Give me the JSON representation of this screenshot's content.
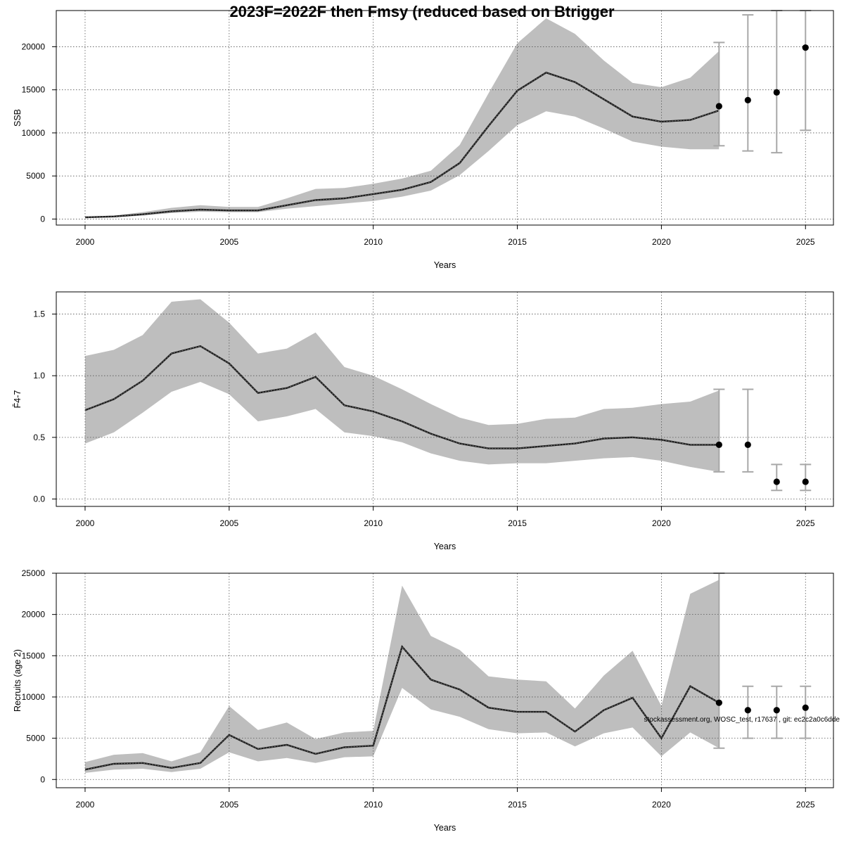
{
  "page": {
    "title": "2023F=2022F then Fmsy (reduced based on Btrigger",
    "footnote": "stockassessment.org, WOSC_test, r17637 , git: ec2c2a0c6dde"
  },
  "colors": {
    "band": "#bebebe",
    "line": "#1a1a1a",
    "point": "#000000",
    "errorbar": "#a8a8a8",
    "grid": "#555555",
    "frame": "#000000"
  },
  "chart_data": [
    {
      "type": "line",
      "id": "ssb",
      "ylabel": "SSB",
      "xlabel": "Years",
      "xlim": [
        1999.0,
        2025.97
      ],
      "ylim": [
        -700,
        24200
      ],
      "xticks": [
        2000,
        2005,
        2010,
        2015,
        2020,
        2025
      ],
      "yticks": [
        0,
        5000,
        10000,
        15000,
        20000
      ],
      "ytick_labels": [
        "0",
        "5000",
        "10000",
        "15000",
        "20000"
      ],
      "grid": true,
      "estimate": {
        "x": [
          2000,
          2001,
          2002,
          2003,
          2004,
          2005,
          2006,
          2007,
          2008,
          2009,
          2010,
          2011,
          2012,
          2013,
          2014,
          2015,
          2016,
          2017,
          2018,
          2019,
          2020,
          2021,
          2022
        ],
        "y": [
          200,
          300,
          550,
          900,
          1100,
          1000,
          1000,
          1600,
          2200,
          2400,
          2900,
          3400,
          4300,
          6500,
          10800,
          14900,
          17000,
          15900,
          13900,
          11900,
          11300,
          11500,
          12600
        ],
        "lower": [
          100,
          200,
          400,
          700,
          850,
          800,
          800,
          1200,
          1500,
          1800,
          2100,
          2600,
          3300,
          5100,
          7900,
          10900,
          12500,
          11900,
          10500,
          9000,
          8400,
          8100,
          8100
        ],
        "upper": [
          300,
          400,
          800,
          1300,
          1600,
          1400,
          1400,
          2400,
          3500,
          3600,
          4100,
          4700,
          5600,
          8600,
          14600,
          20400,
          23300,
          21500,
          18400,
          15800,
          15300,
          16400,
          19500
        ]
      },
      "forecast": {
        "x": [
          2022,
          2023,
          2024,
          2025
        ],
        "y": [
          13100,
          13800,
          14700,
          19900
        ],
        "lower": [
          8500,
          7900,
          7700,
          10300
        ],
        "upper": [
          20500,
          23700,
          24200,
          24200
        ]
      }
    },
    {
      "type": "line",
      "id": "fbar",
      "ylabel": "F̄4-7",
      "xlabel": "Years",
      "xlim": [
        1999.0,
        2025.97
      ],
      "ylim": [
        -0.06,
        1.68
      ],
      "xticks": [
        2000,
        2005,
        2010,
        2015,
        2020,
        2025
      ],
      "yticks": [
        0.0,
        0.5,
        1.0,
        1.5
      ],
      "ytick_labels": [
        "0.0",
        "0.5",
        "1.0",
        "1.5"
      ],
      "grid": true,
      "estimate": {
        "x": [
          2000,
          2001,
          2002,
          2003,
          2004,
          2005,
          2006,
          2007,
          2008,
          2009,
          2010,
          2011,
          2012,
          2013,
          2014,
          2015,
          2016,
          2017,
          2018,
          2019,
          2020,
          2021,
          2022
        ],
        "y": [
          0.72,
          0.81,
          0.96,
          1.18,
          1.24,
          1.1,
          0.86,
          0.9,
          0.99,
          0.76,
          0.71,
          0.63,
          0.53,
          0.45,
          0.41,
          0.41,
          0.43,
          0.45,
          0.49,
          0.5,
          0.48,
          0.44,
          0.44
        ],
        "lower": [
          0.45,
          0.54,
          0.7,
          0.87,
          0.95,
          0.85,
          0.63,
          0.67,
          0.73,
          0.54,
          0.51,
          0.46,
          0.37,
          0.31,
          0.28,
          0.29,
          0.29,
          0.31,
          0.33,
          0.34,
          0.31,
          0.26,
          0.22
        ],
        "upper": [
          1.16,
          1.21,
          1.33,
          1.6,
          1.62,
          1.43,
          1.18,
          1.22,
          1.35,
          1.07,
          1.0,
          0.89,
          0.77,
          0.66,
          0.6,
          0.61,
          0.65,
          0.66,
          0.73,
          0.74,
          0.77,
          0.79,
          0.88
        ]
      },
      "forecast": {
        "x": [
          2022,
          2023,
          2024,
          2025
        ],
        "y": [
          0.44,
          0.44,
          0.14,
          0.14
        ],
        "lower": [
          0.22,
          0.22,
          0.07,
          0.07
        ],
        "upper": [
          0.89,
          0.89,
          0.28,
          0.28
        ]
      }
    },
    {
      "type": "line",
      "id": "recruits",
      "ylabel": "Recruits (age 2)",
      "xlabel": "Years",
      "xlim": [
        1999.0,
        2025.97
      ],
      "ylim": [
        -1000,
        25000
      ],
      "xticks": [
        2000,
        2005,
        2010,
        2015,
        2020,
        2025
      ],
      "yticks": [
        0,
        5000,
        10000,
        15000,
        20000,
        25000
      ],
      "ytick_labels": [
        "0",
        "5000",
        "10000",
        "15000",
        "20000",
        "25000"
      ],
      "grid": true,
      "estimate": {
        "x": [
          2000,
          2001,
          2002,
          2003,
          2004,
          2005,
          2006,
          2007,
          2008,
          2009,
          2010,
          2011,
          2012,
          2013,
          2014,
          2015,
          2016,
          2017,
          2018,
          2019,
          2020,
          2021,
          2022
        ],
        "y": [
          1200,
          1900,
          2000,
          1400,
          2000,
          5400,
          3700,
          4200,
          3100,
          3900,
          4100,
          16100,
          12100,
          10900,
          8700,
          8200,
          8200,
          5800,
          8400,
          9900,
          5000,
          11300,
          9300
        ],
        "lower": [
          800,
          1200,
          1300,
          900,
          1300,
          3300,
          2200,
          2600,
          2000,
          2700,
          2800,
          11100,
          8500,
          7600,
          6100,
          5600,
          5700,
          4000,
          5600,
          6300,
          2800,
          5700,
          3800
        ],
        "upper": [
          2100,
          3000,
          3200,
          2200,
          3300,
          8900,
          6000,
          6900,
          4900,
          5700,
          5900,
          23500,
          17400,
          15700,
          12500,
          12100,
          11900,
          8600,
          12600,
          15600,
          8900,
          22500,
          24200
        ]
      },
      "forecast": {
        "x": [
          2022,
          2023,
          2024,
          2025
        ],
        "y": [
          9300,
          8400,
          8400,
          8700
        ],
        "lower": [
          3800,
          5000,
          5000,
          5000
        ],
        "upper": [
          25000,
          11300,
          11300,
          11300
        ]
      }
    }
  ]
}
